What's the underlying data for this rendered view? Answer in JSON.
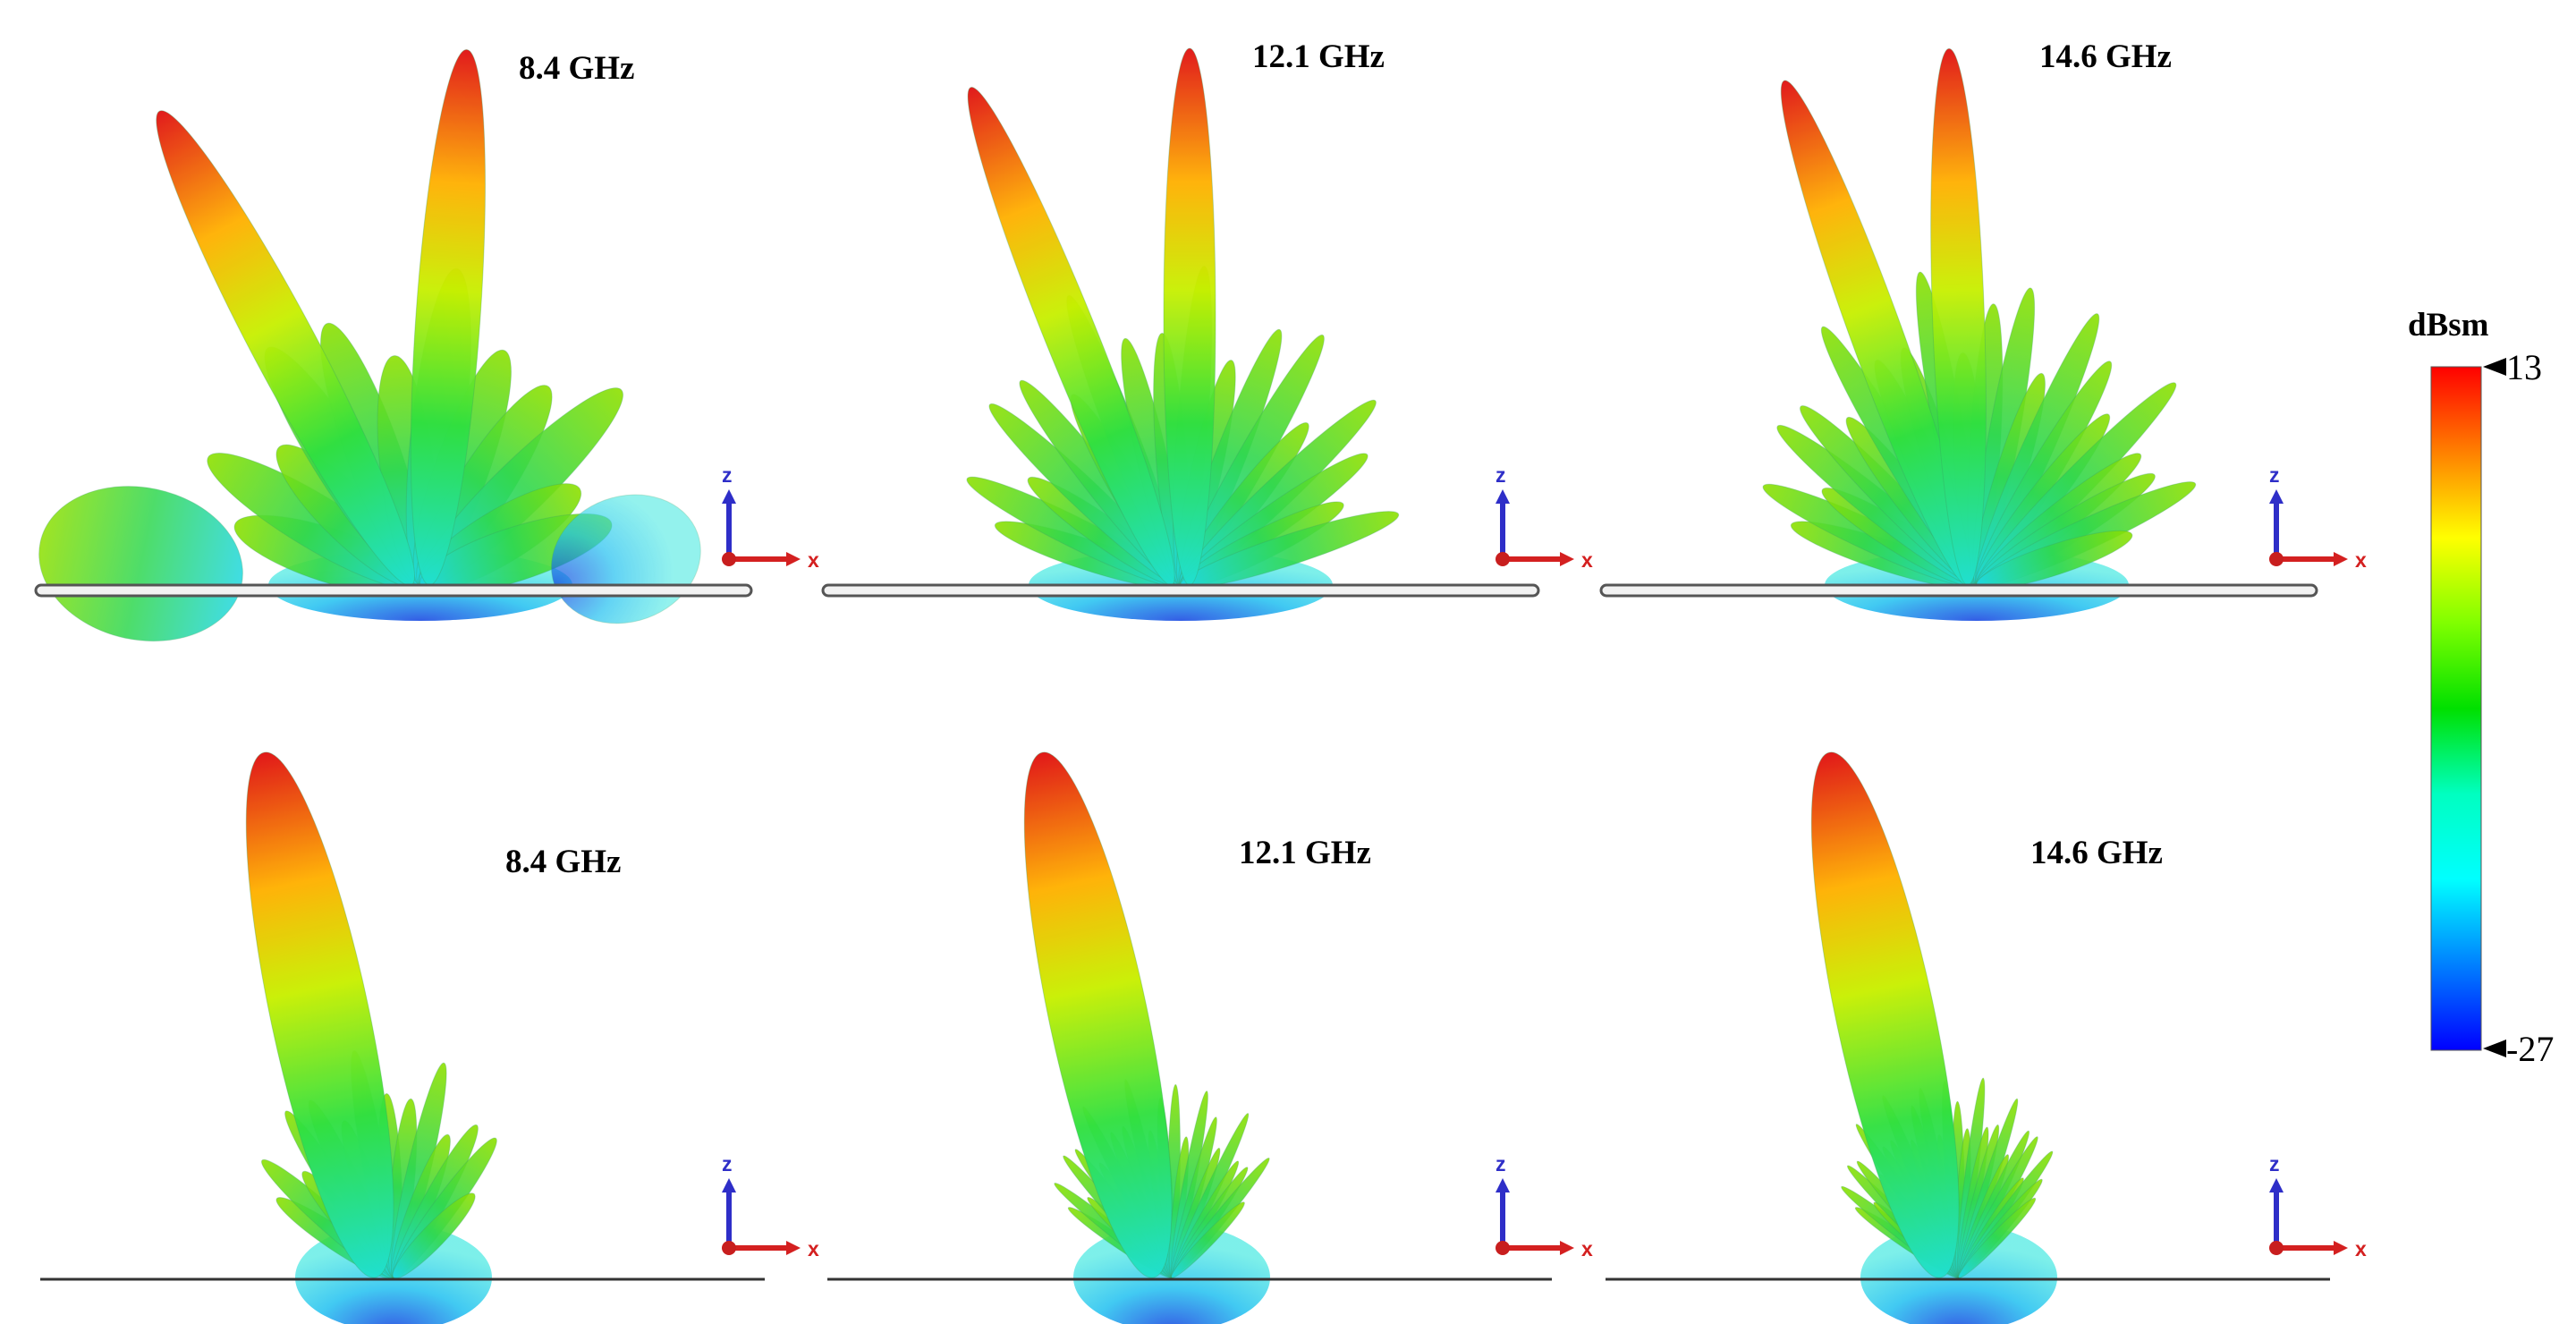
{
  "panels": [
    {
      "row": "top",
      "label": "8.4 GHz"
    },
    {
      "row": "top",
      "label": "12.1 GHz"
    },
    {
      "row": "top",
      "label": "14.6 GHz"
    },
    {
      "row": "bottom",
      "label": "8.4 GHz"
    },
    {
      "row": "bottom",
      "label": "12.1 GHz"
    },
    {
      "row": "bottom",
      "label": "14.6 GHz"
    }
  ],
  "axes": {
    "vertical": "z",
    "horizontal": "x",
    "z_color": "#2e2ec8",
    "x_color": "#d42020",
    "origin_color": "#c81e1e"
  },
  "colorbar": {
    "title": "dBsm",
    "max": "13",
    "min": "-27",
    "colors": [
      "#ff0000",
      "#ff8000",
      "#ffff00",
      "#80ff00",
      "#00e000",
      "#00ffc0",
      "#00ffff",
      "#0080ff",
      "#0000ff"
    ]
  }
}
